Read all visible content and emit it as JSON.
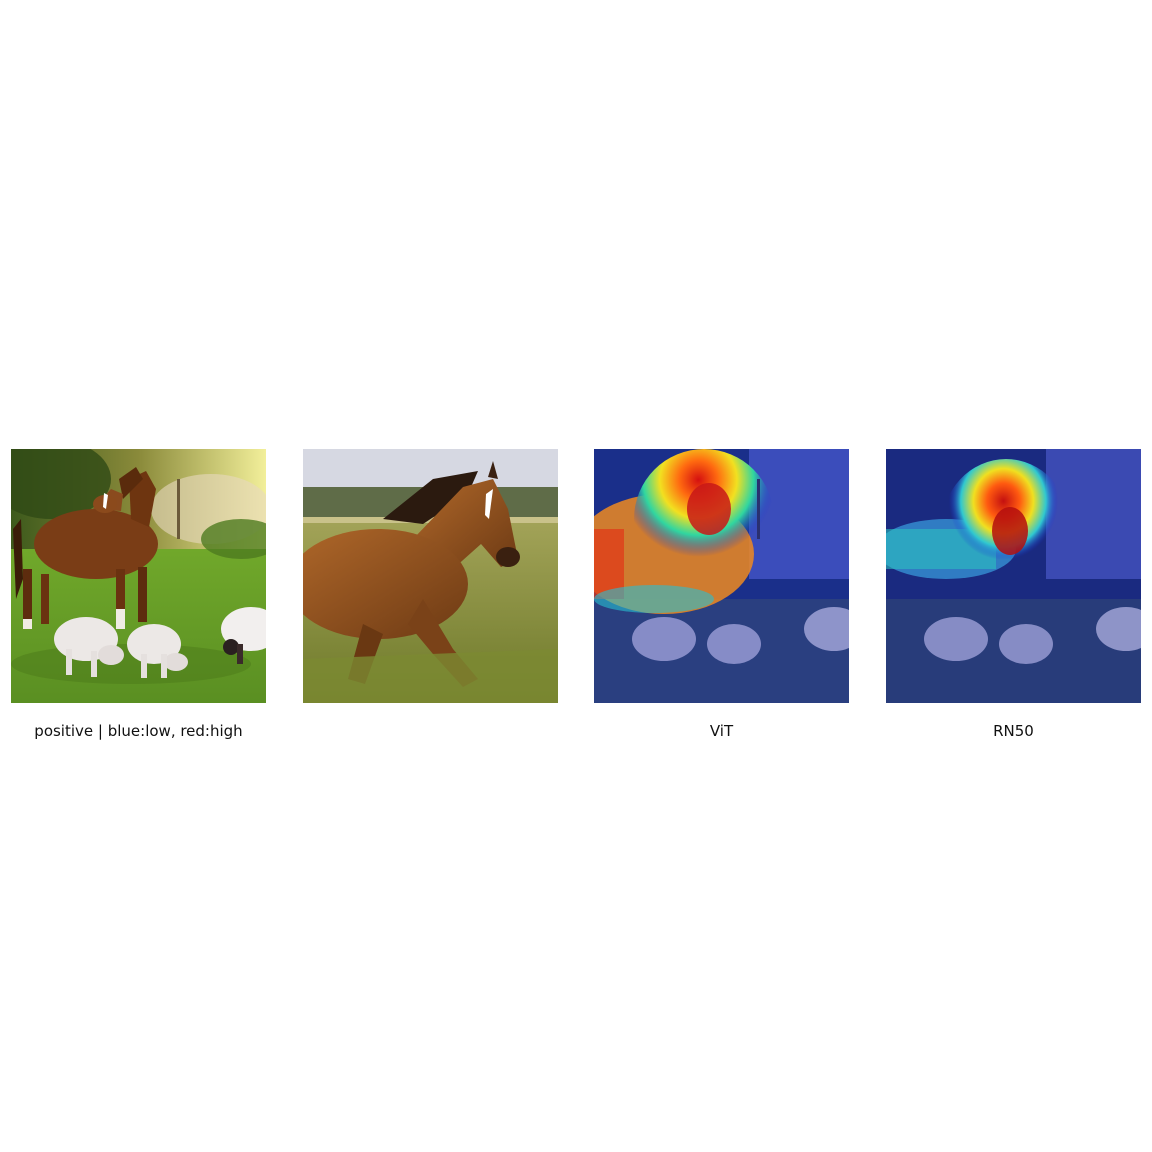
{
  "figure": {
    "captions": {
      "positive": "positive | blue:low, red:high",
      "vit": "ViT",
      "rn50": "RN50"
    },
    "colormap": {
      "low": "#1a2bd6",
      "high": "#d40f0f"
    }
  }
}
